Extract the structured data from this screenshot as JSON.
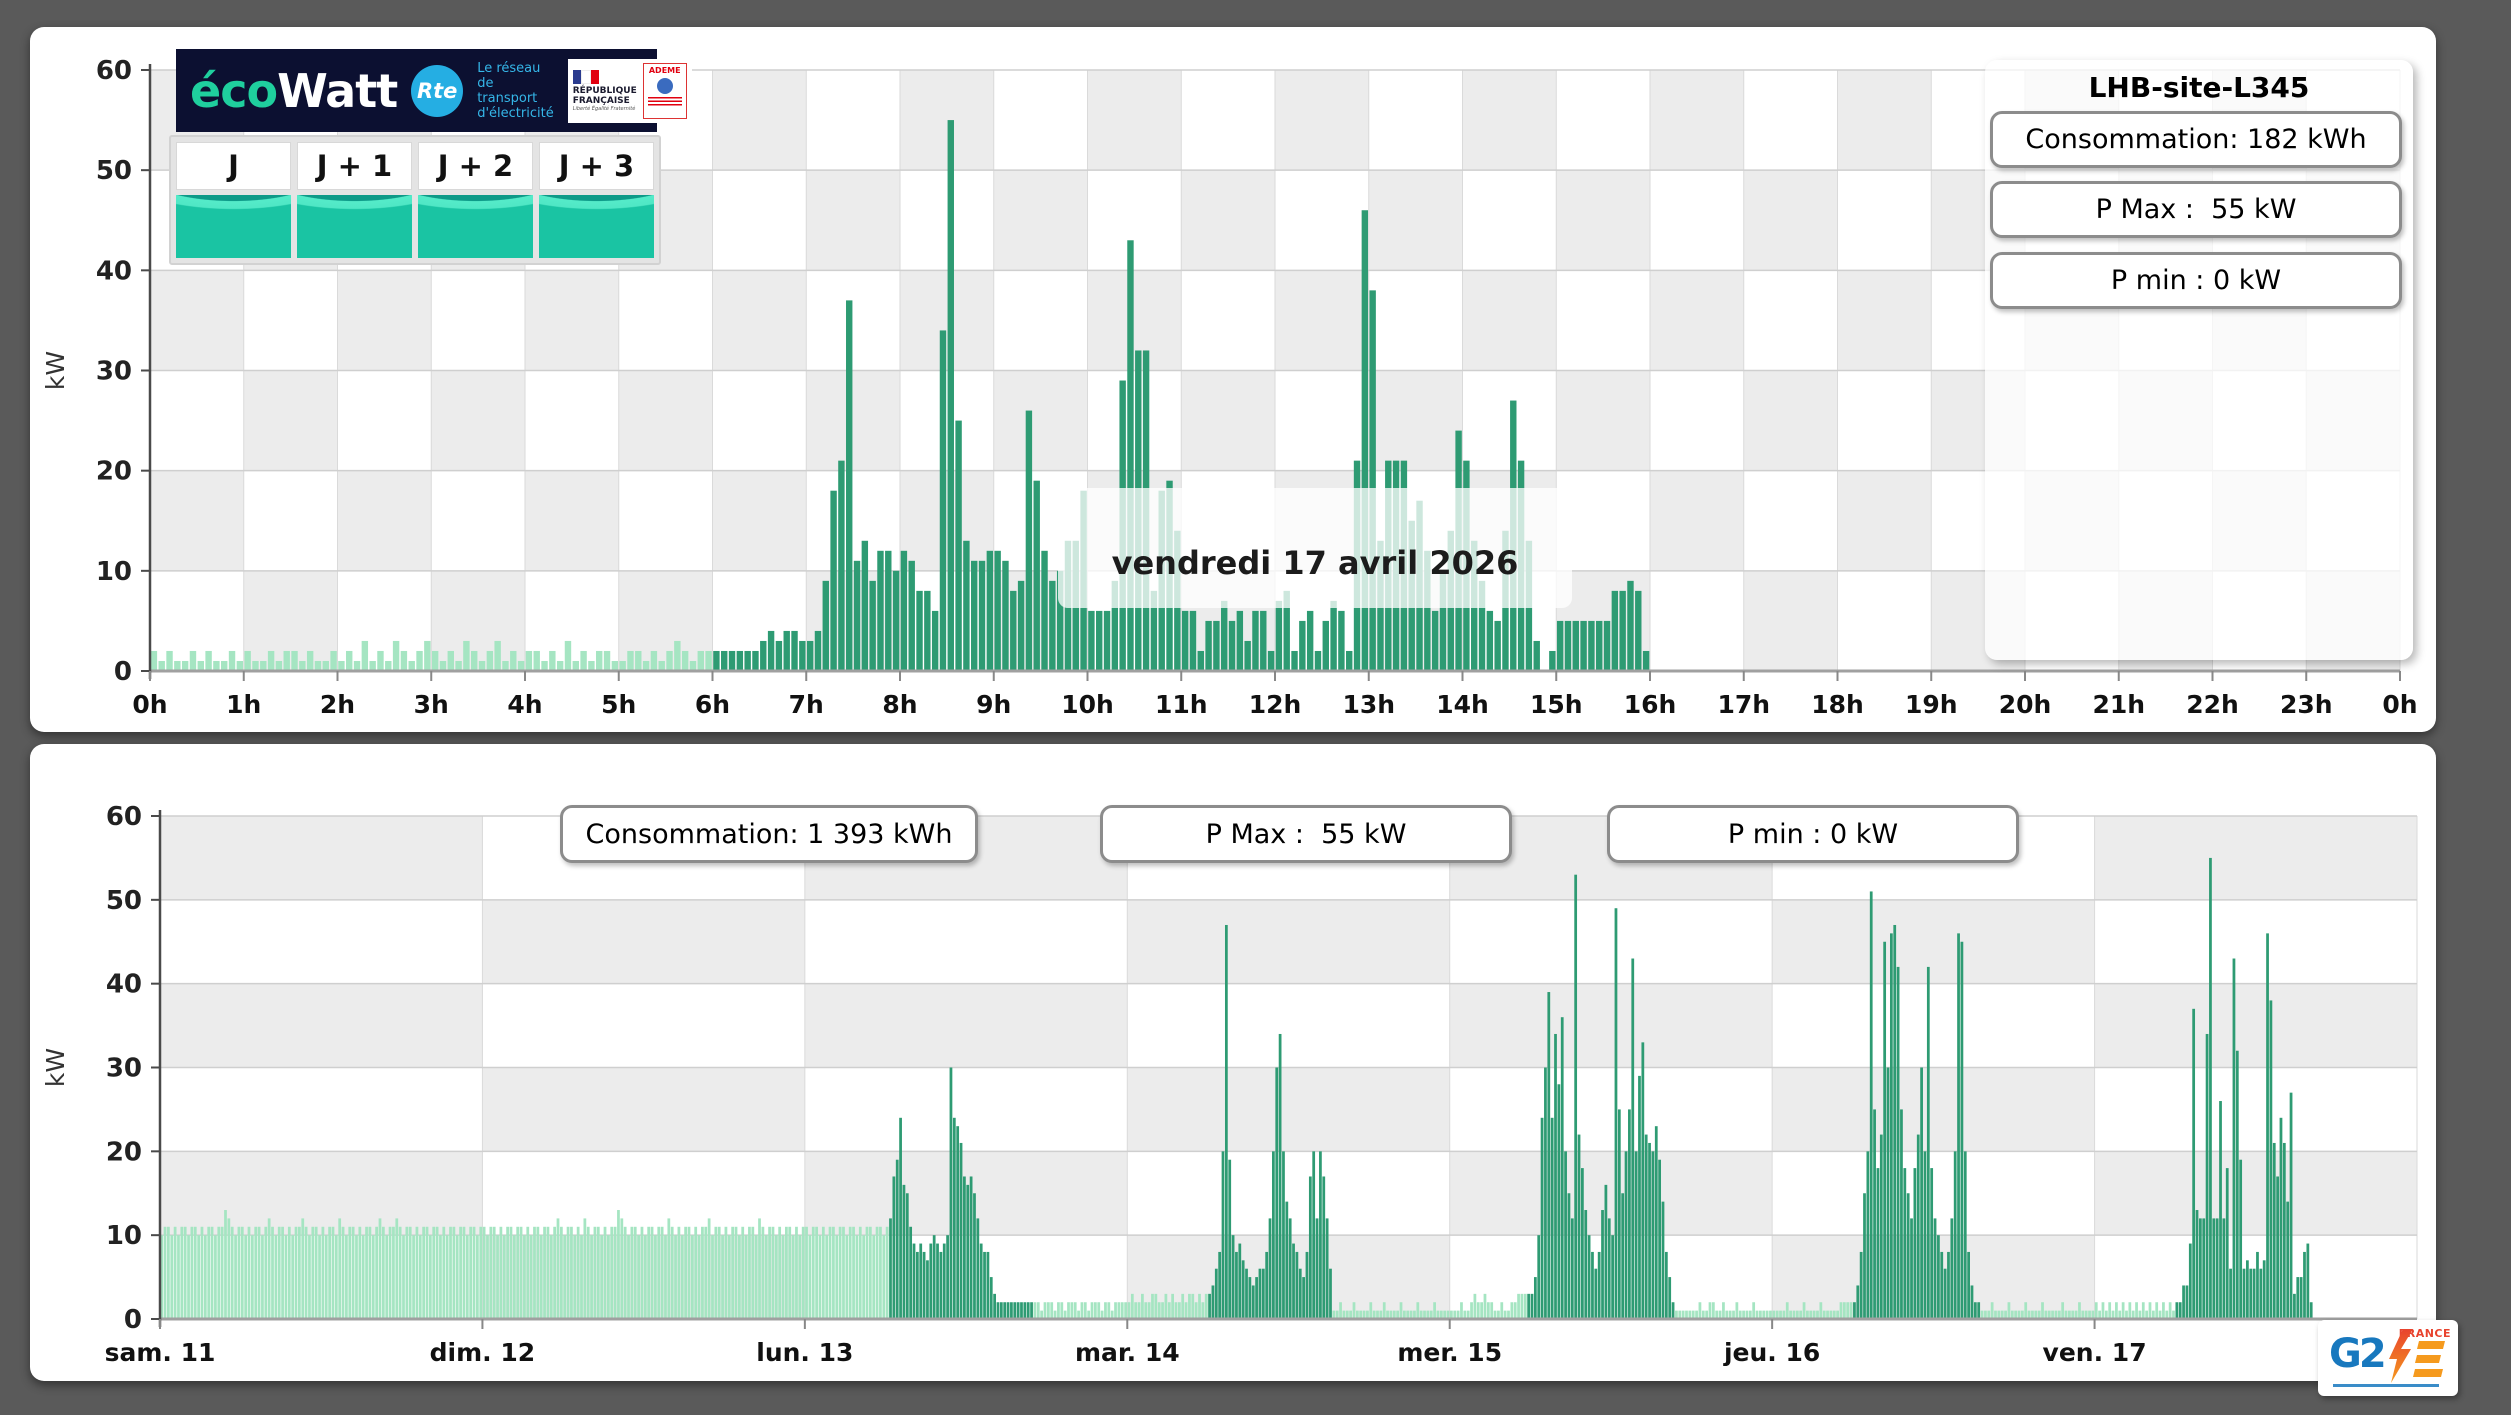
{
  "page": {
    "background": "#5a5a5a"
  },
  "branding": {
    "ecowatt": {
      "eco": "éco",
      "watt": "Watt"
    },
    "rte": {
      "abbr": "Rte",
      "tagline": "Le réseau de transport d'électricité"
    },
    "republique": {
      "line1": "RÉPUBLIQUE",
      "line2": "FRANÇAISE",
      "motto": "Liberté Égalité Fraternité"
    },
    "ademe": {
      "label": "ADEME"
    },
    "g2e": {
      "g2": "G2",
      "france": "FRANCE"
    }
  },
  "forecast_tabs": [
    {
      "label": "J"
    },
    {
      "label": "J + 1"
    },
    {
      "label": "J + 2"
    },
    {
      "label": "J + 3"
    }
  ],
  "day_panel": {
    "site_title": "LHB-site-L345",
    "stats": [
      {
        "label": "Consommation: 182 kWh"
      },
      {
        "label": "P Max :  55 kW"
      },
      {
        "label": "P min : 0 kW"
      }
    ],
    "date_label": "vendredi 17 avril 2026",
    "ylabel": "kW"
  },
  "week_panel": {
    "stats": [
      {
        "label": "Consommation: 1 393 kWh"
      },
      {
        "label": "P Max :  55 kW"
      },
      {
        "label": "P min : 0 kW"
      }
    ],
    "ylabel": "kW"
  },
  "chart_data": [
    {
      "type": "bar",
      "title": "vendredi 17 avril 2026",
      "xlabel": "",
      "ylabel": "kW",
      "ylim": [
        0,
        60
      ],
      "yticks": [
        0,
        10,
        20,
        30,
        40,
        50,
        60
      ],
      "grid": "checkerboard",
      "interval_minutes": 5,
      "x_tick_labels": [
        "0h",
        "1h",
        "2h",
        "3h",
        "4h",
        "5h",
        "6h",
        "7h",
        "8h",
        "9h",
        "10h",
        "11h",
        "12h",
        "13h",
        "14h",
        "15h",
        "16h",
        "17h",
        "18h",
        "19h",
        "20h",
        "21h",
        "22h",
        "23h",
        "0h"
      ],
      "colors": {
        "measured": "#2e9b73",
        "estimated": "#a5e5c2"
      },
      "estimated_until_index": 72,
      "values": [
        2,
        1,
        2,
        1,
        1,
        2,
        1,
        2,
        1,
        1,
        2,
        1,
        2,
        1,
        1,
        2,
        1,
        2,
        2,
        1,
        2,
        1,
        1,
        2,
        1,
        2,
        1,
        3,
        1,
        2,
        1,
        3,
        2,
        1,
        2,
        3,
        2,
        1,
        2,
        1,
        3,
        2,
        1,
        2,
        3,
        1,
        2,
        1,
        2,
        2,
        1,
        2,
        1,
        3,
        1,
        2,
        1,
        2,
        2,
        1,
        1,
        2,
        2,
        1,
        2,
        1,
        2,
        3,
        2,
        1,
        2,
        2,
        2,
        2,
        2,
        2,
        2,
        2,
        3,
        4,
        3,
        4,
        4,
        3,
        3,
        4,
        9,
        18,
        21,
        37,
        11,
        13,
        9,
        12,
        12,
        10,
        12,
        11,
        8,
        8,
        6,
        34,
        55,
        25,
        13,
        11,
        11,
        12,
        12,
        11,
        8,
        9,
        26,
        19,
        12,
        9,
        10,
        13,
        13,
        18,
        6,
        6,
        6,
        9,
        29,
        43,
        32,
        32,
        8,
        18,
        19,
        14,
        6,
        6,
        2,
        5,
        5,
        7,
        5,
        6,
        3,
        6,
        6,
        2,
        7,
        8,
        2,
        5,
        6,
        2,
        5,
        7,
        6,
        2,
        21,
        46,
        38,
        13,
        21,
        21,
        21,
        15,
        17,
        12,
        6,
        10,
        14,
        24,
        21,
        13,
        9,
        6,
        5,
        14,
        27,
        21,
        13,
        3,
        0,
        2,
        5,
        5,
        5,
        5,
        5,
        5,
        5,
        8,
        8,
        9,
        8,
        2,
        0,
        0,
        0,
        0,
        0,
        0,
        0,
        0,
        0,
        0,
        0,
        0,
        0,
        0,
        0,
        0,
        0,
        0,
        0,
        0,
        0,
        0,
        0,
        0,
        0,
        0,
        0,
        0,
        0,
        0,
        0,
        0,
        0,
        0,
        0,
        0,
        0,
        0,
        0,
        0,
        0,
        0,
        0,
        0,
        0,
        0,
        0,
        0,
        0,
        0,
        0,
        0,
        0,
        0,
        0,
        0,
        0,
        0,
        0,
        0,
        0,
        0,
        0,
        0,
        0,
        0,
        0,
        0,
        0,
        0,
        0,
        0,
        0,
        0,
        0,
        0,
        0,
        0,
        0,
        0,
        0,
        0,
        0,
        0,
        0,
        0,
        0,
        0,
        0,
        0,
        0,
        0,
        0,
        0,
        0,
        0
      ]
    },
    {
      "type": "bar",
      "title": "",
      "xlabel": "",
      "ylabel": "kW",
      "ylim": [
        0,
        60
      ],
      "yticks": [
        0,
        10,
        20,
        30,
        40,
        50,
        60
      ],
      "grid": "checkerboard",
      "interval_minutes": 15,
      "colors": {
        "measured": "#2e9b73",
        "estimated": "#a5e5c2"
      },
      "days": [
        {
          "label": "sam. 11",
          "measured_range": null,
          "values": [
            10,
            11,
            11,
            10,
            11,
            10,
            11,
            11,
            10,
            11,
            11,
            10,
            11,
            10,
            11,
            11,
            10,
            11,
            11,
            13,
            12,
            11,
            10,
            11,
            11,
            10,
            11,
            10,
            11,
            11,
            10,
            11,
            12,
            11,
            10,
            11,
            11,
            10,
            11,
            10,
            11,
            11,
            12,
            11,
            10,
            11,
            11,
            10,
            11,
            10,
            11,
            11,
            10,
            12,
            11,
            10,
            11,
            11,
            10,
            11,
            10,
            11,
            11,
            10,
            11,
            12,
            11,
            10,
            11,
            11,
            12,
            11,
            10,
            11,
            11,
            10,
            11,
            10,
            11,
            11,
            10,
            11,
            11,
            10,
            11,
            10,
            11,
            11,
            10,
            11,
            11,
            10,
            11,
            11,
            10,
            11
          ]
        },
        {
          "label": "dim. 12",
          "measured_range": null,
          "values": [
            11,
            10,
            11,
            11,
            10,
            11,
            10,
            11,
            11,
            10,
            11,
            11,
            10,
            11,
            10,
            11,
            11,
            10,
            11,
            11,
            10,
            11,
            12,
            11,
            10,
            11,
            11,
            10,
            11,
            10,
            12,
            11,
            10,
            11,
            11,
            10,
            11,
            10,
            11,
            11,
            13,
            12,
            11,
            10,
            11,
            11,
            10,
            11,
            10,
            11,
            11,
            10,
            11,
            11,
            10,
            12,
            11,
            10,
            11,
            10,
            11,
            11,
            10,
            11,
            10,
            11,
            11,
            12,
            10,
            11,
            11,
            10,
            11,
            10,
            11,
            11,
            10,
            11,
            10,
            11,
            11,
            10,
            12,
            11,
            10,
            11,
            11,
            10,
            11,
            10,
            11,
            11,
            10,
            11,
            10,
            11
          ]
        },
        {
          "label": "lun. 13",
          "measured_range": [
            25,
            67
          ],
          "values": [
            11,
            10,
            11,
            11,
            10,
            11,
            10,
            11,
            11,
            10,
            11,
            11,
            10,
            11,
            11,
            10,
            11,
            10,
            11,
            11,
            10,
            11,
            11,
            10,
            11,
            12,
            17,
            19,
            24,
            16,
            15,
            11,
            9,
            8,
            9,
            8,
            7,
            9,
            10,
            9,
            8,
            9,
            10,
            30,
            24,
            23,
            21,
            17,
            16,
            17,
            15,
            12,
            9,
            8,
            8,
            5,
            3,
            2,
            2,
            2,
            2,
            2,
            2,
            2,
            2,
            2,
            2,
            2,
            2,
            2,
            1,
            2,
            2,
            2,
            1,
            2,
            2,
            1,
            2,
            2,
            2,
            1,
            2,
            2,
            1,
            2,
            2,
            2,
            1,
            2,
            2,
            1,
            2,
            2,
            2,
            2
          ]
        },
        {
          "label": "mar. 14",
          "measured_range": [
            24,
            60
          ],
          "values": [
            2,
            3,
            2,
            2,
            3,
            2,
            2,
            3,
            3,
            2,
            2,
            3,
            2,
            3,
            2,
            2,
            3,
            2,
            3,
            3,
            2,
            3,
            2,
            3,
            3,
            4,
            6,
            8,
            20,
            47,
            19,
            10,
            8,
            9,
            7,
            6,
            5,
            4,
            5,
            6,
            6,
            8,
            12,
            20,
            30,
            34,
            20,
            14,
            12,
            9,
            8,
            6,
            5,
            8,
            17,
            20,
            12,
            20,
            17,
            12,
            6,
            1,
            1,
            2,
            1,
            1,
            1,
            2,
            1,
            1,
            1,
            1,
            2,
            1,
            1,
            1,
            2,
            1,
            1,
            1,
            1,
            2,
            1,
            1,
            1,
            1,
            2,
            1,
            1,
            1,
            1,
            2,
            1,
            1,
            1,
            1
          ]
        },
        {
          "label": "mer. 15",
          "measured_range": [
            23,
            66
          ],
          "values": [
            1,
            1,
            1,
            2,
            1,
            1,
            2,
            3,
            2,
            2,
            3,
            2,
            2,
            1,
            1,
            2,
            1,
            1,
            2,
            2,
            3,
            3,
            3,
            3,
            3,
            5,
            10,
            24,
            30,
            39,
            24,
            34,
            28,
            36,
            20,
            15,
            12,
            53,
            22,
            18,
            13,
            10,
            8,
            6,
            8,
            13,
            16,
            12,
            10,
            49,
            25,
            15,
            20,
            25,
            43,
            20,
            29,
            33,
            22,
            21,
            20,
            23,
            19,
            14,
            8,
            5,
            2,
            1,
            1,
            1,
            1,
            1,
            1,
            1,
            2,
            1,
            1,
            2,
            2,
            1,
            1,
            2,
            1,
            1,
            1,
            2,
            1,
            1,
            1,
            1,
            2,
            1,
            1,
            1,
            1,
            1
          ]
        },
        {
          "label": "jeu. 16",
          "measured_range": [
            24,
            61
          ],
          "values": [
            1,
            1,
            1,
            1,
            2,
            1,
            1,
            1,
            1,
            2,
            1,
            1,
            1,
            1,
            2,
            1,
            1,
            1,
            1,
            1,
            2,
            2,
            2,
            2,
            2,
            4,
            8,
            15,
            20,
            51,
            25,
            18,
            22,
            45,
            30,
            46,
            47,
            42,
            25,
            18,
            15,
            12,
            18,
            22,
            30,
            20,
            42,
            18,
            12,
            10,
            8,
            6,
            8,
            12,
            20,
            46,
            45,
            20,
            8,
            4,
            2,
            2,
            1,
            1,
            1,
            2,
            1,
            1,
            1,
            1,
            2,
            1,
            1,
            1,
            1,
            2,
            1,
            1,
            1,
            1,
            2,
            1,
            1,
            1,
            1,
            1,
            2,
            1,
            1,
            1,
            1,
            2,
            1,
            1,
            1,
            1
          ]
        },
        {
          "label": "ven. 17",
          "measured_range": [
            24,
            64
          ],
          "values": [
            2,
            1,
            2,
            1,
            2,
            1,
            2,
            1,
            2,
            1,
            2,
            1,
            2,
            1,
            2,
            1,
            2,
            1,
            2,
            1,
            2,
            1,
            2,
            1,
            2,
            2,
            4,
            4,
            9,
            37,
            13,
            12,
            12,
            34,
            55,
            12,
            12,
            26,
            12,
            18,
            6,
            43,
            32,
            19,
            6,
            7,
            6,
            6,
            8,
            6,
            7,
            46,
            38,
            21,
            17,
            24,
            21,
            14,
            27,
            3,
            5,
            5,
            8,
            9,
            2,
            0,
            0,
            0,
            0,
            0,
            0,
            0,
            0,
            0,
            0,
            0,
            0,
            0,
            0,
            0,
            0,
            0,
            0,
            0,
            0,
            0,
            0,
            0,
            0,
            0,
            0,
            0,
            0,
            0,
            0,
            0
          ]
        }
      ]
    }
  ]
}
